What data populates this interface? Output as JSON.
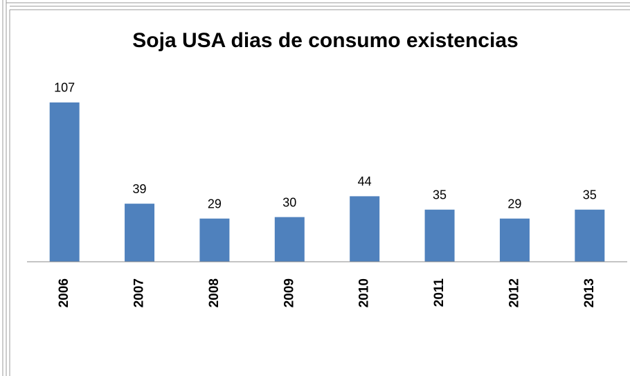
{
  "chart_data": {
    "type": "bar",
    "title": "Soja USA dias de consumo existencias",
    "categories": [
      "2006",
      "2007",
      "2008",
      "2009",
      "2010",
      "2011",
      "2012",
      "2013"
    ],
    "values": [
      107,
      39,
      29,
      30,
      44,
      35,
      29,
      35
    ],
    "color": "#4f81bd",
    "ylim": [
      0,
      120
    ]
  }
}
